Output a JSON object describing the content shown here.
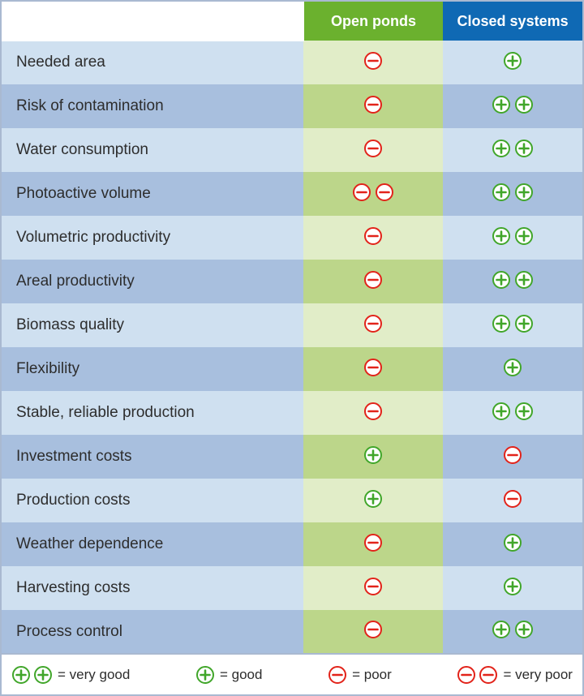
{
  "colors": {
    "header_open": "#6bb12e",
    "header_closed": "#0f69b4",
    "label_light": "#cfe0f0",
    "label_dark": "#a8bfde",
    "open_light": "#e1edc8",
    "open_dark": "#bcd68a",
    "closed_light": "#cfe0f0",
    "closed_dark": "#a8bfde",
    "text_body": "#2d2d2d",
    "plus_color": "#41a62a",
    "minus_color": "#e2231a"
  },
  "header": {
    "col1": "Open ponds",
    "col2": "Closed systems"
  },
  "rows": [
    {
      "label": "Needed area",
      "open": "minus",
      "closed": "plus"
    },
    {
      "label": "Risk of contamination",
      "open": "minus",
      "closed": "plus-plus"
    },
    {
      "label": "Water consumption",
      "open": "minus",
      "closed": "plus-plus"
    },
    {
      "label": "Photoactive volume",
      "open": "minus-minus",
      "closed": "plus-plus"
    },
    {
      "label": "Volumetric productivity",
      "open": "minus",
      "closed": "plus-plus"
    },
    {
      "label": "Areal productivity",
      "open": "minus",
      "closed": "plus-plus"
    },
    {
      "label": "Biomass quality",
      "open": "minus",
      "closed": "plus-plus"
    },
    {
      "label": "Flexibility",
      "open": "minus",
      "closed": "plus"
    },
    {
      "label": "Stable, reliable production",
      "open": "minus",
      "closed": "plus-plus"
    },
    {
      "label": "Investment costs",
      "open": "plus",
      "closed": "minus"
    },
    {
      "label": "Production costs",
      "open": "plus",
      "closed": "minus"
    },
    {
      "label": "Weather dependence",
      "open": "minus",
      "closed": "plus"
    },
    {
      "label": "Harvesting costs",
      "open": "minus",
      "closed": "plus"
    },
    {
      "label": "Process control",
      "open": "minus",
      "closed": "plus-plus"
    }
  ],
  "legend": [
    {
      "text": "= very good",
      "icon": "plus-plus"
    },
    {
      "text": "= good",
      "icon": "plus"
    },
    {
      "text": "= poor",
      "icon": "minus"
    },
    {
      "text": "= very poor",
      "icon": "minus-minus"
    }
  ]
}
